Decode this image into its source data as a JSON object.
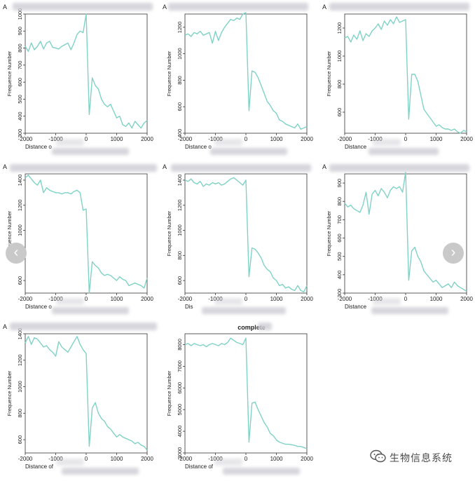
{
  "figure": {
    "ylabel": "Frequence Number",
    "accent_color": "#7fd2c6"
  },
  "nav": {
    "prev_icon": "‹",
    "next_icon": "›"
  },
  "watermark": {
    "text": "生物信息系统",
    "icon": "wechat-icon"
  },
  "chart_data": [
    {
      "type": "line",
      "panel_label": "A",
      "title": "",
      "xlabel": "Distance o",
      "xlim": [
        -2000,
        2000
      ],
      "ylim": [
        300,
        1000
      ],
      "yticks": [
        300,
        400,
        500,
        600,
        700,
        800,
        900,
        1000
      ],
      "xticks": [
        -2000,
        -1000,
        0,
        1000,
        2000
      ],
      "x": [
        -2000,
        -1900,
        -1800,
        -1700,
        -1600,
        -1500,
        -1400,
        -1300,
        -1200,
        -1100,
        -1000,
        -900,
        -800,
        -700,
        -600,
        -500,
        -400,
        -300,
        -200,
        -100,
        0,
        100,
        200,
        300,
        400,
        500,
        600,
        700,
        800,
        900,
        1000,
        1100,
        1200,
        1300,
        1400,
        1500,
        1600,
        1700,
        1800,
        1900,
        2000
      ],
      "y": [
        810,
        780,
        830,
        790,
        810,
        840,
        795,
        830,
        840,
        805,
        800,
        795,
        810,
        820,
        830,
        790,
        830,
        880,
        900,
        890,
        1000,
        410,
        625,
        580,
        560,
        500,
        470,
        455,
        470,
        430,
        390,
        400,
        350,
        340,
        360,
        330,
        370,
        350,
        330,
        360,
        375
      ]
    },
    {
      "type": "line",
      "panel_label": "A",
      "title": "",
      "xlabel": "Distance o",
      "xlim": [
        -2000,
        2000
      ],
      "ylim": [
        400,
        1300
      ],
      "yticks": [
        400,
        600,
        800,
        1000,
        1200
      ],
      "xticks": [
        -2000,
        -1000,
        0,
        1000,
        2000
      ],
      "x": [
        -2000,
        -1900,
        -1800,
        -1700,
        -1600,
        -1500,
        -1400,
        -1300,
        -1200,
        -1100,
        -1000,
        -900,
        -800,
        -700,
        -600,
        -500,
        -400,
        -300,
        -200,
        -100,
        0,
        100,
        200,
        300,
        400,
        500,
        600,
        700,
        800,
        900,
        1000,
        1100,
        1200,
        1300,
        1400,
        1500,
        1600,
        1700,
        1800,
        1900,
        2000
      ],
      "y": [
        1140,
        1150,
        1130,
        1160,
        1150,
        1170,
        1140,
        1150,
        1160,
        1080,
        1170,
        1100,
        1160,
        1200,
        1230,
        1260,
        1250,
        1270,
        1260,
        1300,
        1310,
        570,
        870,
        860,
        820,
        760,
        700,
        640,
        610,
        570,
        550,
        500,
        490,
        470,
        460,
        450,
        440,
        470,
        430,
        440,
        450
      ]
    },
    {
      "type": "line",
      "panel_label": "A",
      "title": "",
      "xlabel": "Distance",
      "xlim": [
        -2000,
        2000
      ],
      "ylim": [
        450,
        1300
      ],
      "yticks": [
        600,
        800,
        1000,
        1200
      ],
      "xticks": [
        -2000,
        -1000,
        0,
        1000,
        2000
      ],
      "x": [
        -2000,
        -1900,
        -1800,
        -1700,
        -1600,
        -1500,
        -1400,
        -1300,
        -1200,
        -1100,
        -1000,
        -900,
        -800,
        -700,
        -600,
        -500,
        -400,
        -300,
        -200,
        -100,
        0,
        100,
        200,
        300,
        400,
        500,
        600,
        700,
        800,
        900,
        1000,
        1100,
        1200,
        1300,
        1400,
        1500,
        1600,
        1700,
        1800,
        1900,
        2000
      ],
      "y": [
        1130,
        1140,
        1100,
        1150,
        1120,
        1180,
        1110,
        1160,
        1140,
        1180,
        1200,
        1230,
        1190,
        1250,
        1220,
        1260,
        1230,
        1280,
        1240,
        1250,
        1260,
        550,
        870,
        870,
        820,
        720,
        620,
        590,
        560,
        530,
        500,
        510,
        490,
        480,
        480,
        470,
        480,
        460,
        450,
        470,
        460
      ]
    },
    {
      "type": "line",
      "panel_label": "A",
      "title": "",
      "xlabel": "Distance o",
      "xlim": [
        -2000,
        2000
      ],
      "ylim": [
        500,
        1450
      ],
      "yticks": [
        600,
        800,
        1000,
        1200,
        1400
      ],
      "xticks": [
        -2000,
        -1000,
        0,
        1000,
        2000
      ],
      "x": [
        -2000,
        -1900,
        -1800,
        -1700,
        -1600,
        -1500,
        -1400,
        -1300,
        -1200,
        -1100,
        -1000,
        -900,
        -800,
        -700,
        -600,
        -500,
        -400,
        -300,
        -200,
        -100,
        0,
        100,
        200,
        300,
        400,
        500,
        600,
        700,
        800,
        900,
        1000,
        1100,
        1200,
        1300,
        1400,
        1500,
        1600,
        1700,
        1800,
        1900,
        2000
      ],
      "y": [
        1420,
        1440,
        1410,
        1380,
        1360,
        1400,
        1300,
        1340,
        1320,
        1310,
        1300,
        1300,
        1290,
        1300,
        1300,
        1290,
        1310,
        1320,
        1300,
        1160,
        1170,
        500,
        750,
        720,
        700,
        660,
        640,
        650,
        640,
        620,
        600,
        630,
        610,
        600,
        560,
        570,
        580,
        570,
        560,
        540,
        620
      ]
    },
    {
      "type": "line",
      "panel_label": "A",
      "title": "",
      "xlabel": "Dis",
      "xlim": [
        -2000,
        2000
      ],
      "ylim": [
        500,
        1450
      ],
      "yticks": [
        600,
        800,
        1000,
        1200,
        1400
      ],
      "xticks": [
        -2000,
        -1000,
        0,
        1000,
        2000
      ],
      "x": [
        -2000,
        -1900,
        -1800,
        -1700,
        -1600,
        -1500,
        -1400,
        -1300,
        -1200,
        -1100,
        -1000,
        -900,
        -800,
        -700,
        -600,
        -500,
        -400,
        -300,
        -200,
        -100,
        0,
        100,
        200,
        300,
        400,
        500,
        600,
        700,
        800,
        900,
        1000,
        1100,
        1200,
        1300,
        1400,
        1500,
        1600,
        1700,
        1800,
        1900,
        2000
      ],
      "y": [
        1400,
        1390,
        1410,
        1380,
        1370,
        1390,
        1350,
        1370,
        1360,
        1380,
        1370,
        1380,
        1360,
        1370,
        1390,
        1410,
        1420,
        1400,
        1380,
        1360,
        1400,
        630,
        860,
        850,
        820,
        780,
        720,
        690,
        670,
        620,
        600,
        560,
        570,
        540,
        550,
        530,
        520,
        560,
        520,
        510,
        560
      ]
    },
    {
      "type": "line",
      "panel_label": "A",
      "title": "",
      "xlabel": "Distance",
      "xlim": [
        -2000,
        2000
      ],
      "ylim": [
        300,
        950
      ],
      "yticks": [
        300,
        400,
        500,
        600,
        700,
        800,
        900
      ],
      "xticks": [
        -2000,
        -1000,
        0,
        1000,
        2000
      ],
      "x": [
        -2000,
        -1900,
        -1800,
        -1700,
        -1600,
        -1500,
        -1400,
        -1300,
        -1200,
        -1100,
        -1000,
        -900,
        -800,
        -700,
        -600,
        -500,
        -400,
        -300,
        -200,
        -100,
        0,
        100,
        200,
        300,
        400,
        500,
        600,
        700,
        800,
        900,
        1000,
        1100,
        1200,
        1300,
        1400,
        1500,
        1600,
        1700,
        1800,
        1900,
        2000
      ],
      "y": [
        790,
        770,
        780,
        760,
        750,
        740,
        780,
        850,
        730,
        840,
        860,
        830,
        870,
        850,
        820,
        860,
        880,
        870,
        880,
        850,
        960,
        370,
        530,
        550,
        500,
        470,
        420,
        400,
        380,
        360,
        370,
        350,
        330,
        340,
        350,
        330,
        360,
        340,
        330,
        320,
        310
      ]
    },
    {
      "type": "line",
      "panel_label": "A",
      "title": "",
      "xlabel": "Distance of",
      "xlim": [
        -2000,
        2000
      ],
      "ylim": [
        500,
        1400
      ],
      "yticks": [
        600,
        800,
        1000,
        1200,
        1400
      ],
      "xticks": [
        -2000,
        -1000,
        0,
        1000,
        2000
      ],
      "x": [
        -2000,
        -1900,
        -1800,
        -1700,
        -1600,
        -1500,
        -1400,
        -1300,
        -1200,
        -1100,
        -1000,
        -900,
        -800,
        -700,
        -600,
        -500,
        -400,
        -300,
        -200,
        -100,
        0,
        100,
        200,
        300,
        400,
        500,
        600,
        700,
        800,
        900,
        1000,
        1100,
        1200,
        1300,
        1400,
        1500,
        1600,
        1700,
        1800,
        1900,
        2000
      ],
      "y": [
        1330,
        1380,
        1320,
        1370,
        1360,
        1330,
        1300,
        1310,
        1280,
        1260,
        1230,
        1340,
        1300,
        1280,
        1260,
        1300,
        1340,
        1380,
        1320,
        1280,
        1250,
        550,
        840,
        880,
        800,
        760,
        740,
        700,
        680,
        650,
        620,
        640,
        620,
        610,
        600,
        590,
        570,
        580,
        560,
        550,
        520
      ]
    },
    {
      "type": "line",
      "panel_label": "",
      "title": "complete",
      "xlabel": "Distance of",
      "xlim": [
        -2000,
        2000
      ],
      "ylim": [
        3000,
        8500
      ],
      "yticks": [
        3000,
        4000,
        5000,
        6000,
        7000,
        8000
      ],
      "xticks": [
        -2000,
        -1000,
        0,
        1000,
        2000
      ],
      "x": [
        -2000,
        -1900,
        -1800,
        -1700,
        -1600,
        -1500,
        -1400,
        -1300,
        -1200,
        -1100,
        -1000,
        -900,
        -800,
        -700,
        -600,
        -500,
        -400,
        -300,
        -200,
        -100,
        0,
        100,
        200,
        300,
        400,
        500,
        600,
        700,
        800,
        900,
        1000,
        1100,
        1200,
        1300,
        1400,
        1500,
        1600,
        1700,
        1800,
        1900,
        2000
      ],
      "y": [
        8000,
        8050,
        7950,
        8050,
        8000,
        7950,
        8000,
        7900,
        8000,
        8050,
        8000,
        7950,
        8050,
        8000,
        8100,
        8300,
        8200,
        8100,
        8050,
        8000,
        8300,
        3500,
        5300,
        5350,
        5000,
        4700,
        4400,
        4200,
        3900,
        3800,
        3600,
        3500,
        3450,
        3400,
        3400,
        3380,
        3350,
        3300,
        3300,
        3250,
        3200
      ]
    }
  ]
}
